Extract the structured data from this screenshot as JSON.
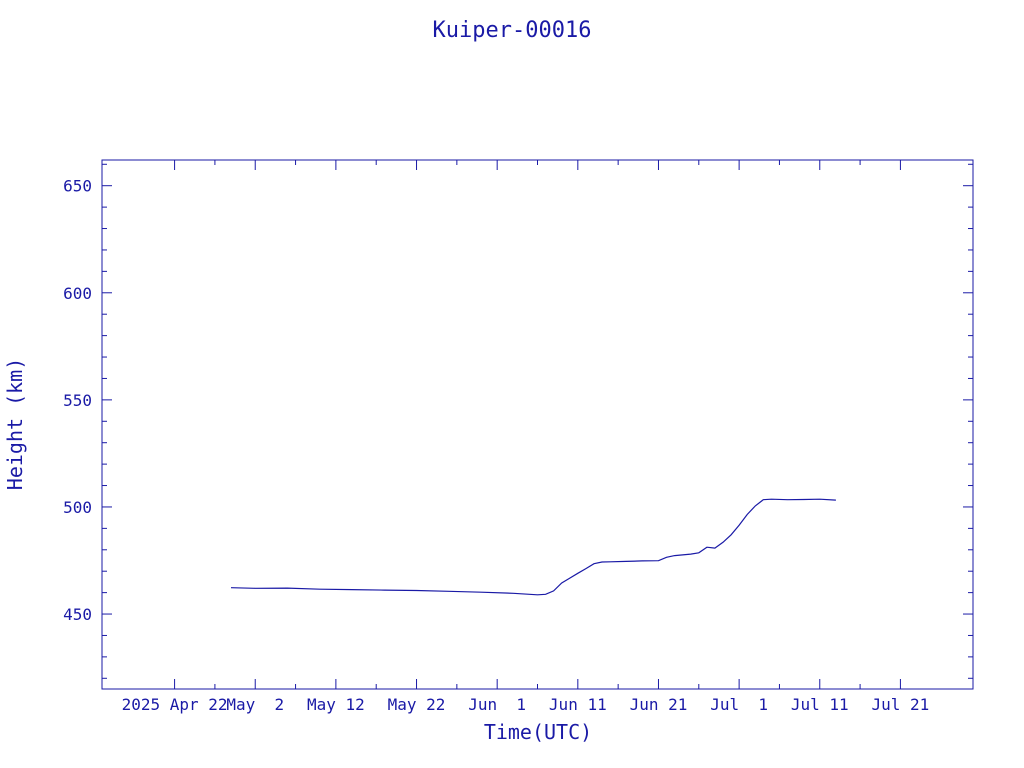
{
  "chart_data": {
    "type": "line",
    "title": "Kuiper-00016",
    "xlabel": "Time(UTC)",
    "ylabel": "Height (km)",
    "x_ticks": [
      "2025 Apr 22",
      "May  2",
      "May 12",
      "May 22",
      "Jun  1",
      "Jun 11",
      "Jun 21",
      "Jul  1",
      "Jul 11",
      "Jul 21"
    ],
    "x_tick_days": [
      0,
      10,
      20,
      30,
      40,
      50,
      60,
      70,
      80,
      90
    ],
    "x_minor_days": [
      5,
      15,
      25,
      35,
      45,
      55,
      65,
      75,
      85
    ],
    "y_ticks": [
      450,
      500,
      550,
      600,
      650
    ],
    "y_minor_step": 10,
    "xlim_days": [
      -9,
      99
    ],
    "ylim": [
      415,
      662
    ],
    "color": "#1a1aa6",
    "series": [
      {
        "x": [
          "2025-04-29",
          "2025-05-02",
          "2025-05-06",
          "2025-05-10",
          "2025-05-14",
          "2025-05-18",
          "2025-05-22",
          "2025-05-26",
          "2025-05-30",
          "2025-06-03",
          "2025-06-06",
          "2025-06-07",
          "2025-06-08",
          "2025-06-09",
          "2025-06-10",
          "2025-06-11",
          "2025-06-12",
          "2025-06-13",
          "2025-06-14",
          "2025-06-15",
          "2025-06-17",
          "2025-06-19",
          "2025-06-21",
          "2025-06-22",
          "2025-06-23",
          "2025-06-25",
          "2025-06-26",
          "2025-06-27",
          "2025-06-28",
          "2025-06-29",
          "2025-06-30",
          "2025-07-01",
          "2025-07-02",
          "2025-07-03",
          "2025-07-04",
          "2025-07-05",
          "2025-07-07",
          "2025-07-09",
          "2025-07-11",
          "2025-07-13"
        ],
        "y": [
          462.3,
          462.0,
          462.1,
          461.6,
          461.4,
          461.2,
          461.0,
          460.6,
          460.2,
          459.7,
          459.0,
          459.2,
          460.8,
          464.5,
          466.8,
          469.0,
          471.2,
          473.5,
          474.3,
          474.4,
          474.6,
          474.8,
          474.9,
          476.5,
          477.3,
          478.0,
          478.6,
          481.2,
          480.8,
          483.5,
          487.0,
          491.5,
          496.5,
          500.5,
          503.4,
          503.6,
          503.4,
          503.5,
          503.6,
          503.2
        ]
      }
    ]
  }
}
